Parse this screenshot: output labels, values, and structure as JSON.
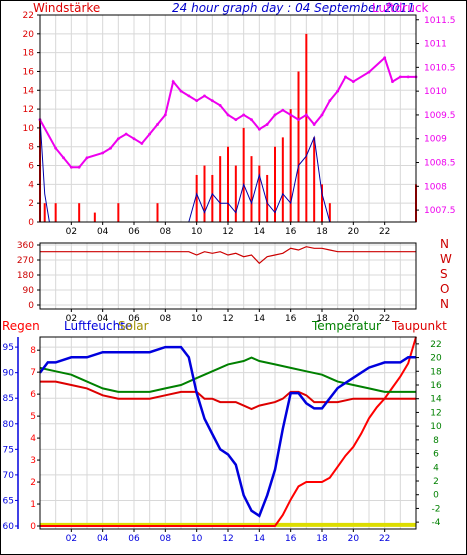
{
  "colors": {
    "windstarke": "#dd0000",
    "luftdruck": "#ee00ee",
    "gust": "#ff0000",
    "wind_avg": "#0000aa",
    "title": "#0000cc",
    "direction": "#cc0000",
    "regen": "#ff0000",
    "luftfeuchte": "#0000dd",
    "solar": "#dddd00",
    "temperatur": "#008000",
    "taupunkt": "#dd0000",
    "frame": "#000000",
    "grid": "#d8d8d8"
  },
  "top": {
    "title": "24 hour graph day : 04 September 2011",
    "label_left": "Windstärke",
    "label_right": "Luftdruck",
    "y_left_ticks": [
      "22",
      "20",
      "18",
      "16",
      "14",
      "12",
      "10",
      "8",
      "6",
      "4",
      "2",
      "0"
    ],
    "y_right_ticks": [
      "1011.5",
      "1011",
      "1010.5",
      "1010",
      "1009.5",
      "1009",
      "1008.5",
      "1008",
      "1007.5"
    ],
    "x_ticks": [
      "02",
      "04",
      "06",
      "08",
      "10",
      "12",
      "14",
      "16",
      "18",
      "20",
      "22"
    ]
  },
  "mid": {
    "dir_letters": [
      "N",
      "W",
      "S",
      "O",
      "N"
    ],
    "y_ticks": [
      "360",
      "270",
      "180",
      "90",
      "0"
    ],
    "x_ticks": [
      "02",
      "04",
      "06",
      "08",
      "10",
      "12",
      "14",
      "16",
      "18",
      "20",
      "22"
    ]
  },
  "bottom": {
    "label_regen": "Regen",
    "label_luftfeuchte": "Luftfeuchte",
    "label_solar": "Solar",
    "label_temperatur": "Temperatur",
    "label_taupunkt": "Taupunkt",
    "y_regen_ticks": [
      "8",
      "7",
      "6",
      "5",
      "4",
      "3",
      "2",
      "1",
      "0"
    ],
    "y_humidity_ticks": [
      "95",
      "90",
      "85",
      "80",
      "75",
      "70",
      "65",
      "60"
    ],
    "y_temp_ticks": [
      "22",
      "20",
      "18",
      "16",
      "14",
      "12",
      "10",
      "8",
      "6",
      "4",
      "2",
      "0",
      "-2",
      "-4"
    ],
    "x_ticks": [
      "02",
      "04",
      "06",
      "08",
      "10",
      "12",
      "14",
      "16",
      "18",
      "20",
      "22"
    ]
  },
  "chart_data": [
    {
      "type": "line",
      "title": "24 hour graph day : 04 September 2011",
      "xlim": [
        0,
        24
      ],
      "ylim_left": [
        0,
        22
      ],
      "ylim_right": [
        1007.25,
        1011.6
      ],
      "series": [
        {
          "name": "Windstärke",
          "axis": "left",
          "x": [
            0,
            0.3,
            0.6,
            1,
            1.5,
            2,
            2.5,
            3,
            3.5,
            4,
            4.5,
            5,
            5.5,
            6,
            6.5,
            7,
            7.5,
            8,
            8.5,
            9,
            9.5,
            10,
            10.5,
            11,
            11.5,
            12,
            12.5,
            13,
            13.5,
            14,
            14.5,
            15,
            15.5,
            16,
            16.5,
            17,
            17.5,
            18,
            18.5,
            19,
            19.5,
            20,
            20.5,
            21,
            21.5,
            22,
            22.5,
            23,
            23.5,
            24
          ],
          "values": [
            11,
            2,
            0,
            2,
            0,
            0,
            2,
            0,
            1,
            0,
            0,
            2,
            0,
            0,
            0,
            0,
            2,
            0,
            0,
            0,
            0,
            5,
            6,
            5,
            7,
            8,
            6,
            10,
            7,
            6,
            5,
            8,
            9,
            12,
            16,
            20,
            9,
            4,
            2,
            0,
            0,
            0,
            0,
            0,
            0,
            0,
            0,
            0,
            0,
            4
          ]
        },
        {
          "name": "",
          "axis": "left",
          "x": [
            0,
            0.3,
            0.6,
            1,
            2,
            4,
            6,
            8,
            9,
            9.5,
            10,
            10.5,
            11,
            11.5,
            12,
            12.5,
            13,
            13.5,
            14,
            14.5,
            15,
            15.5,
            16,
            16.5,
            17,
            17.5,
            18,
            18.5,
            19,
            20,
            22,
            24
          ],
          "values": [
            11,
            3,
            0,
            0,
            0,
            0,
            0,
            0,
            0,
            0,
            3,
            1,
            3,
            2,
            2,
            1,
            4,
            2,
            5,
            2,
            1,
            3,
            2,
            6,
            7,
            9,
            3,
            0,
            0,
            0,
            0,
            0
          ]
        },
        {
          "name": "Luftdruck",
          "axis": "right",
          "x": [
            0,
            1,
            1.5,
            2,
            2.5,
            3,
            4,
            4.5,
            5,
            5.5,
            6,
            6.5,
            7,
            7.5,
            8,
            8.5,
            9,
            9.5,
            10,
            10.5,
            11,
            11.5,
            12,
            12.5,
            13,
            13.5,
            14,
            14.5,
            15,
            15.5,
            16,
            16.5,
            17,
            17.5,
            18,
            18.5,
            19,
            19.5,
            20,
            21,
            22,
            22.5,
            23,
            23.5,
            24
          ],
          "values": [
            1009.4,
            1008.8,
            1008.6,
            1008.4,
            1008.4,
            1008.6,
            1008.7,
            1008.8,
            1009.0,
            1009.1,
            1009.0,
            1008.9,
            1009.1,
            1009.3,
            1009.5,
            1010.2,
            1010.0,
            1009.9,
            1009.8,
            1009.9,
            1009.8,
            1009.7,
            1009.5,
            1009.4,
            1009.5,
            1009.4,
            1009.2,
            1009.3,
            1009.5,
            1009.6,
            1009.5,
            1009.4,
            1009.5,
            1009.3,
            1009.5,
            1009.8,
            1010.0,
            1010.3,
            1010.2,
            1010.4,
            1010.7,
            1010.2,
            1010.3,
            1010.3,
            1010.3
          ]
        }
      ]
    },
    {
      "type": "line",
      "xlim": [
        0,
        24
      ],
      "ylim": [
        0,
        360
      ],
      "series": [
        {
          "name": "",
          "x": [
            0,
            2,
            4,
            6,
            8,
            9,
            9.5,
            10,
            10.5,
            11,
            11.5,
            12,
            12.5,
            13,
            13.5,
            14,
            14.5,
            15,
            15.5,
            16,
            16.5,
            17,
            17.5,
            18,
            18.5,
            19,
            20,
            22,
            24
          ],
          "values": [
            320,
            320,
            320,
            320,
            320,
            320,
            320,
            300,
            320,
            310,
            320,
            300,
            310,
            290,
            300,
            250,
            290,
            300,
            310,
            340,
            330,
            350,
            340,
            340,
            330,
            320,
            320,
            320,
            320
          ]
        }
      ]
    },
    {
      "type": "line",
      "xlim": [
        0,
        24
      ],
      "series": [
        {
          "name": "Luftfeuchte",
          "axis": "humidity",
          "ylim": [
            60,
            96
          ],
          "x": [
            0,
            0.5,
            1,
            2,
            3,
            4,
            5,
            6,
            7,
            8,
            9,
            9.5,
            10,
            10.5,
            11,
            11.5,
            12,
            12.5,
            13,
            13.5,
            14,
            14.5,
            15,
            15.5,
            16,
            16.5,
            17,
            17.5,
            18,
            18.5,
            19,
            20,
            21,
            22,
            23,
            23.5,
            24
          ],
          "values": [
            90,
            92,
            92,
            93,
            93,
            94,
            94,
            94,
            94,
            95,
            95,
            93,
            86,
            81,
            78,
            75,
            74,
            72,
            66,
            63,
            62,
            66,
            71,
            79,
            86,
            86,
            84,
            83,
            83,
            85,
            87,
            89,
            91,
            92,
            92,
            93,
            93
          ]
        },
        {
          "name": "Temperatur",
          "axis": "temperature",
          "ylim": [
            -5,
            23
          ],
          "x": [
            0,
            1,
            2,
            3,
            4,
            5,
            6,
            7,
            8,
            9,
            10,
            11,
            12,
            13,
            13.5,
            14,
            15,
            16,
            17,
            18,
            19,
            20,
            21,
            22,
            23,
            24
          ],
          "values": [
            18.5,
            18,
            17.5,
            16.5,
            15.5,
            15,
            15,
            15,
            15.5,
            16,
            17,
            18,
            19,
            19.5,
            20,
            19.5,
            19,
            18.5,
            18,
            17.5,
            16.5,
            16,
            15.5,
            15,
            15,
            15
          ]
        },
        {
          "name": "Taupunkt",
          "axis": "temperature",
          "ylim": [
            -5,
            23
          ],
          "x": [
            0,
            1,
            2,
            3,
            4,
            5,
            6,
            7,
            8,
            9,
            10,
            10.5,
            11,
            11.5,
            12,
            12.5,
            13,
            13.5,
            14,
            15,
            15.5,
            16,
            16.5,
            17,
            17.5,
            18,
            19,
            20,
            21,
            22,
            23,
            24
          ],
          "values": [
            16.5,
            16.5,
            16,
            15.5,
            14.5,
            14,
            14,
            14,
            14.5,
            15,
            15,
            14,
            14,
            13.5,
            13.5,
            13.5,
            13,
            12.5,
            13,
            13.5,
            14,
            15,
            15,
            14.5,
            13.5,
            13.5,
            13.5,
            14,
            14,
            14,
            14,
            14
          ]
        },
        {
          "name": "Regen",
          "axis": "rain",
          "ylim": [
            0,
            8.6
          ],
          "x": [
            0,
            15,
            15.5,
            16,
            16.5,
            17,
            18,
            18.5,
            19,
            19.5,
            20,
            20.5,
            21,
            21.5,
            22,
            22.5,
            23,
            23.5,
            24
          ],
          "values": [
            0,
            0,
            0.5,
            1.2,
            1.8,
            2,
            2,
            2.2,
            2.7,
            3.2,
            3.6,
            4.2,
            4.9,
            5.4,
            5.8,
            6.3,
            6.8,
            7.4,
            8.6
          ]
        },
        {
          "name": "Solar",
          "axis": "rain",
          "ylim": [
            0,
            8.6
          ],
          "x": [
            0,
            24
          ],
          "values": [
            0.05,
            0.05
          ]
        }
      ]
    }
  ]
}
